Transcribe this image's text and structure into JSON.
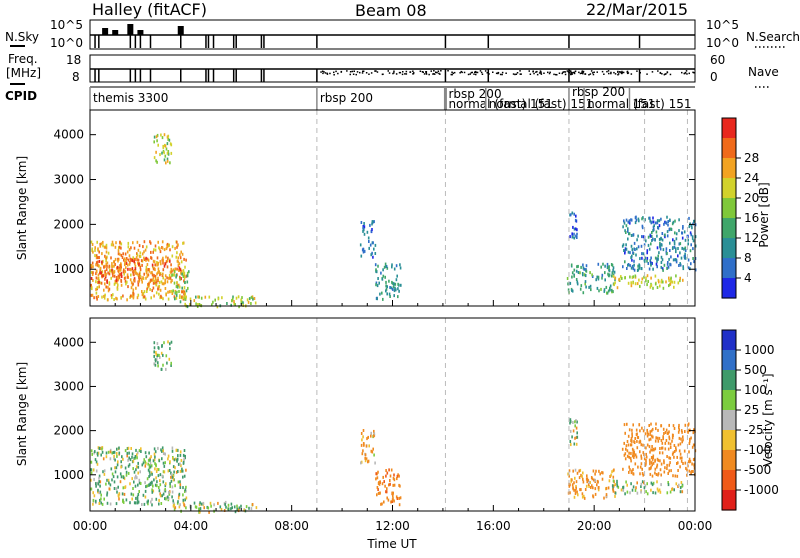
{
  "header": {
    "radar": "Halley (fitACF)",
    "beam": "Beam 08",
    "date": "22/Mar/2015"
  },
  "top_panels": {
    "nsky_label": "N.Sky",
    "nsearch_label": "N.Search",
    "nsky_ticks": [
      "10^5",
      "10^0"
    ],
    "nsearch_ticks": [
      "10^5",
      "10^0"
    ],
    "freq_label_1": "Freq.",
    "freq_label_2": "[MHz]",
    "freq_ticks": [
      "8",
      "18"
    ],
    "nave_label": "Nave",
    "nave_ticks": [
      "0",
      "60"
    ],
    "cpid_label": "CPID",
    "cpid_segments": [
      {
        "start_hr": 0,
        "label": "themis 3300"
      },
      {
        "start_hr": 9.0,
        "label": "rbsp 200"
      },
      {
        "start_hr": 14.1,
        "label": "rbsp 200"
      },
      {
        "start_hr": 14.1,
        "label": "normal (fast) 151"
      },
      {
        "start_hr": 15.7,
        "label": "normal (fast) 151"
      },
      {
        "start_hr": 19.0,
        "label": "rbsp 200"
      },
      {
        "start_hr": 19.6,
        "label": "normal (fast) 151"
      },
      {
        "start_hr": 21.4,
        "label": "151"
      }
    ]
  },
  "chart_data": [
    {
      "type": "heatmap",
      "name": "power",
      "ylabel": "Slant Range [km]",
      "xlabel": "",
      "ylim": [
        180,
        4550
      ],
      "yticks": [
        1000,
        2000,
        3000,
        4000
      ],
      "xlim_hr": [
        0,
        24
      ],
      "colorbar_label": "Power [dB]",
      "colorbar_ticks": [
        "4",
        "8",
        "12",
        "16",
        "20",
        "24",
        "28"
      ],
      "colorbar_colors": [
        "#1e28e6",
        "#2f6fc9",
        "#2a8f96",
        "#3fa66a",
        "#7fc83a",
        "#d2d22c",
        "#f2a322",
        "#f06a1a",
        "#e8281e"
      ],
      "regions": [
        {
          "t0": 0.0,
          "t1": 3.8,
          "r0": 350,
          "r1": 1650,
          "v": 26
        },
        {
          "t0": 0.0,
          "t1": 3.6,
          "r0": 700,
          "r1": 1300,
          "v": 29
        },
        {
          "t0": 3.2,
          "t1": 3.9,
          "r0": 300,
          "r1": 1000,
          "v": 17
        },
        {
          "t0": 3.6,
          "t1": 6.6,
          "r0": 180,
          "r1": 420,
          "v": 20
        },
        {
          "t0": 2.5,
          "t1": 3.2,
          "r0": 3400,
          "r1": 4100,
          "v": 20
        },
        {
          "t0": 10.7,
          "t1": 11.3,
          "r0": 1300,
          "r1": 2100,
          "v": 6
        },
        {
          "t0": 11.3,
          "t1": 12.3,
          "r0": 350,
          "r1": 1150,
          "v": 10
        },
        {
          "t0": 18.9,
          "t1": 20.8,
          "r0": 500,
          "r1": 1150,
          "v": 12
        },
        {
          "t0": 20.7,
          "t1": 23.5,
          "r0": 600,
          "r1": 900,
          "v": 22
        },
        {
          "t0": 21.1,
          "t1": 24.0,
          "r0": 1000,
          "r1": 2200,
          "v": 8
        },
        {
          "t0": 19.0,
          "t1": 19.3,
          "r0": 1700,
          "r1": 2300,
          "v": 5
        }
      ]
    },
    {
      "type": "heatmap",
      "name": "velocity",
      "ylabel": "Slant Range [km]",
      "xlabel": "Time UT",
      "ylim": [
        180,
        4550
      ],
      "yticks": [
        1000,
        2000,
        3000,
        4000
      ],
      "xticks": [
        "00:00",
        "04:00",
        "08:00",
        "12:00",
        "16:00",
        "20:00",
        "00:00"
      ],
      "xlim_hr": [
        0,
        24
      ],
      "colorbar_label": "Velocity [m s⁻¹]",
      "colorbar_ticks": [
        "1000",
        "500",
        "100",
        "25",
        "-25",
        "-100",
        "-500",
        "-1000"
      ],
      "colorbar_colors": [
        "#2030c8",
        "#3070c8",
        "#3f9a6a",
        "#7ccc3f",
        "#b8b8b8",
        "#f0c030",
        "#f08a20",
        "#f05a18",
        "#e0201a"
      ],
      "regions": [
        {
          "t0": 0.0,
          "t1": 3.8,
          "r0": 350,
          "r1": 1650,
          "v": 80
        },
        {
          "t0": 3.2,
          "t1": 6.6,
          "r0": 180,
          "r1": 420,
          "v": 40
        },
        {
          "t0": 2.5,
          "t1": 3.2,
          "r0": 3400,
          "r1": 4100,
          "v": 120
        },
        {
          "t0": 10.7,
          "t1": 11.3,
          "r0": 1300,
          "r1": 2100,
          "v": -150
        },
        {
          "t0": 11.3,
          "t1": 12.3,
          "r0": 350,
          "r1": 1150,
          "v": -400
        },
        {
          "t0": 18.9,
          "t1": 20.8,
          "r0": 500,
          "r1": 1150,
          "v": -200
        },
        {
          "t0": 20.7,
          "t1": 23.5,
          "r0": 600,
          "r1": 900,
          "v": 60
        },
        {
          "t0": 21.1,
          "t1": 24.0,
          "r0": 1000,
          "r1": 2200,
          "v": -300
        },
        {
          "t0": 19.0,
          "t1": 19.3,
          "r0": 1700,
          "r1": 2300,
          "v": 50
        }
      ]
    }
  ]
}
